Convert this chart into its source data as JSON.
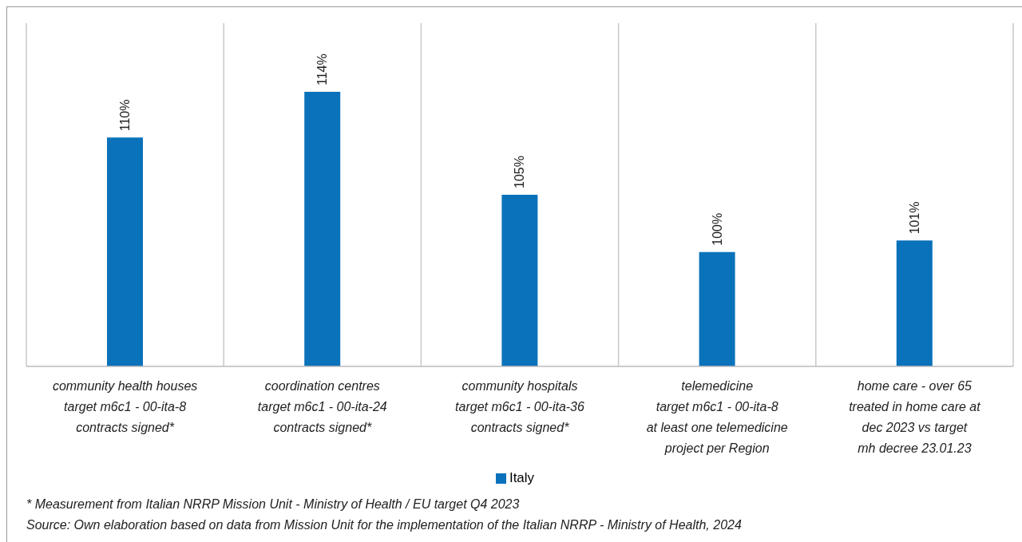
{
  "chart_data": {
    "type": "bar",
    "categories": [
      "community health houses\ntarget m6c1 - 00-ita-8\ncontracts signed*",
      "coordination centres\ntarget m6c1 - 00-ita-24\ncontracts signed*",
      "community hospitals\ntarget m6c1 - 00-ita-36\ncontracts signed*",
      "telemedicine\ntarget m6c1 - 00-ita-8\nat least one telemedicine\nproject per Region",
      "home care - over 65\ntreated in home care at\ndec 2023 vs target\nmh decree 23.01.23"
    ],
    "series": [
      {
        "name": "Italy",
        "color": "#0a72ba",
        "values": [
          110,
          114,
          105,
          100,
          101
        ],
        "value_labels": [
          "110%",
          "114%",
          "105%",
          "100%",
          "101%"
        ]
      }
    ],
    "ylim": [
      90,
      120
    ],
    "grid": "x",
    "legend": "bottom",
    "annotations": [
      "* Measurement from Italian NRRP Mission Unit - Ministry of Health / EU target Q4 2023",
      "Source: Own elaboration based on data from Mission Unit for the implementation of the Italian NRRP - Ministry of Health, 2024"
    ]
  }
}
